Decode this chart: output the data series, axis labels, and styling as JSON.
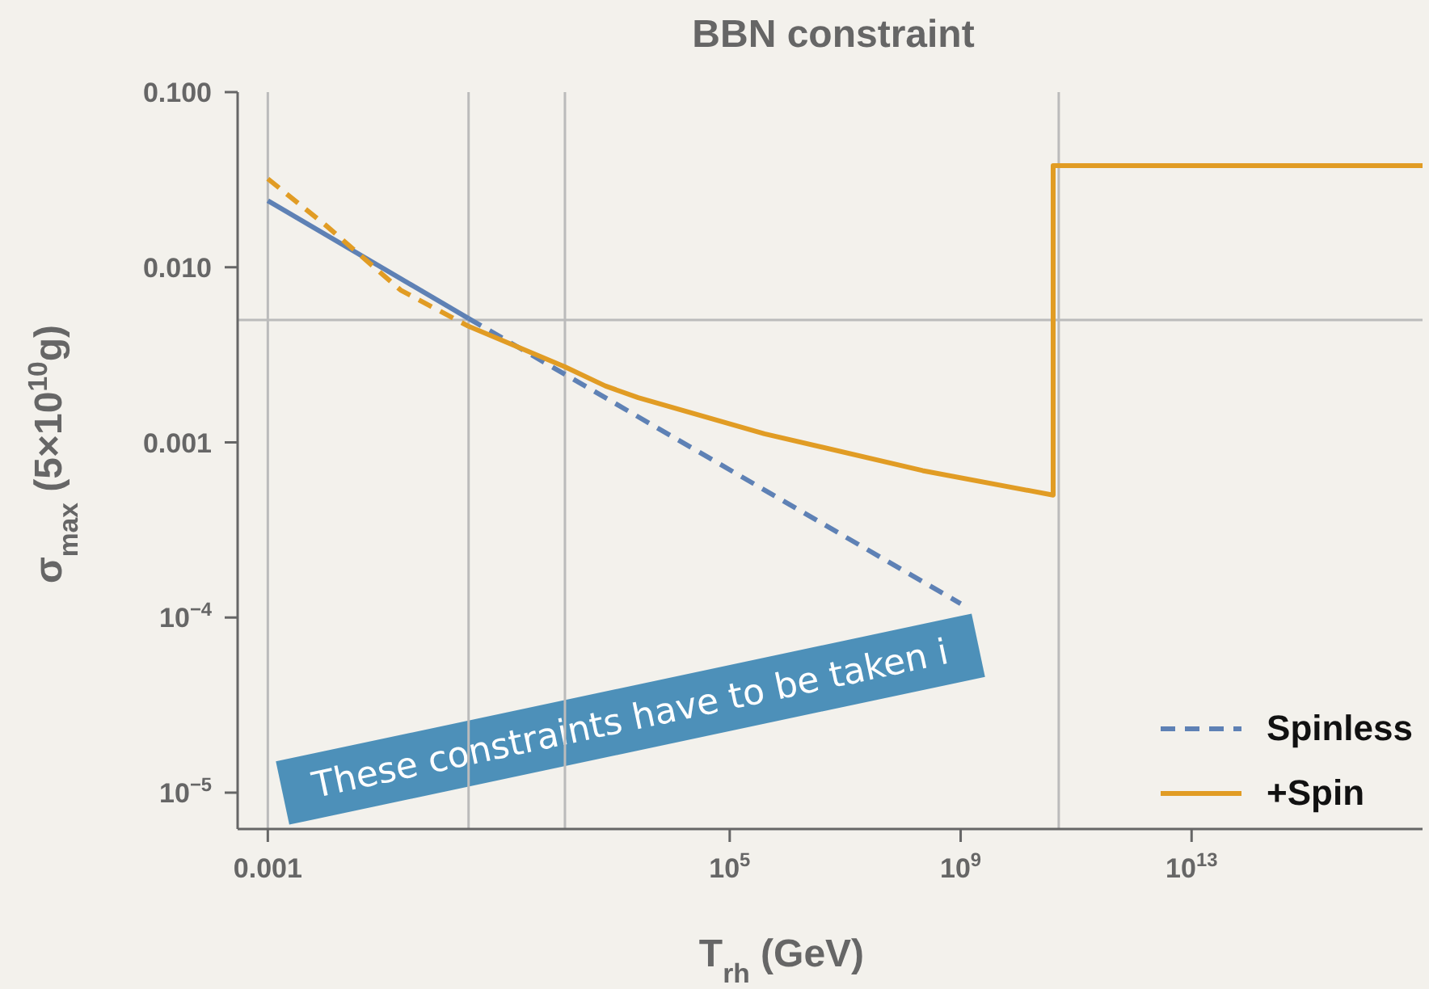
{
  "chart_data": {
    "type": "line",
    "title": "BBN constraint",
    "xlabel": "T$_{rh}$ (GeV)",
    "ylabel": "σ$_{max}$ (5×10$^{10}$g)",
    "log": "xy",
    "xlim": [
      0.0003,
      1e+17
    ],
    "ylim": [
      6.2e-06,
      0.1
    ],
    "xticks": [
      0.001,
      {
        "value": 100000,
        "label": "10$^{5}$"
      },
      {
        "value": 1000000000,
        "label": "10$^{9}$"
      },
      {
        "value": 10000000000000,
        "label": "10$^{13}$"
      }
    ],
    "yticks": [
      {
        "value": 0.1,
        "label": "0.100"
      },
      {
        "value": 0.01,
        "label": "0.010"
      },
      0.001,
      {
        "value": 0.0001,
        "label": "10$^{−4}$"
      },
      {
        "value": 1e-05,
        "label": "10$^{−5}$"
      }
    ],
    "series": [
      {
        "color": "#5e81b5",
        "line_style": "solid",
        "x": [
          0.001,
          3
        ],
        "values": [
          0.024,
          0.0051
        ]
      },
      {
        "name": "Spinless",
        "color": "#5e81b5",
        "line_style": "dashed",
        "x": [
          3,
          1000000000
        ],
        "values": [
          0.0051,
          0.00012
        ]
      },
      {
        "color": "#e19c24",
        "line_style": "dashed",
        "x": [
          0.001,
          0.01,
          0.2,
          3
        ],
        "values": [
          0.032,
          0.0174,
          0.0074,
          0.0046
        ]
      },
      {
        "name": "+Spin",
        "color": "#e19c24",
        "line_style": "solid",
        "x": [
          3,
          140,
          700,
          2600,
          400000,
          220000000,
          40000000000,
          40000000000,
          1e+17
        ],
        "values": [
          0.0046,
          0.0027,
          0.0021,
          0.0018,
          0.00112,
          0.00069,
          0.0005,
          0.038,
          0.038
        ]
      }
    ],
    "ref_lines": [
      {
        "axis": "x",
        "value": 0.001,
        "color": "#bbbbbb"
      },
      {
        "axis": "x",
        "value": 3,
        "color": "#bbbbbb"
      },
      {
        "axis": "x",
        "value": 140,
        "color": "#bbbbbb"
      },
      {
        "axis": "x",
        "value": 50000000000,
        "color": "#bbbbbb"
      },
      {
        "axis": "y",
        "value": 0.005,
        "color": "#bbbbbb"
      }
    ],
    "legend": "bottom right",
    "annotations": [
      "These constraints have to be taken i"
    ]
  }
}
